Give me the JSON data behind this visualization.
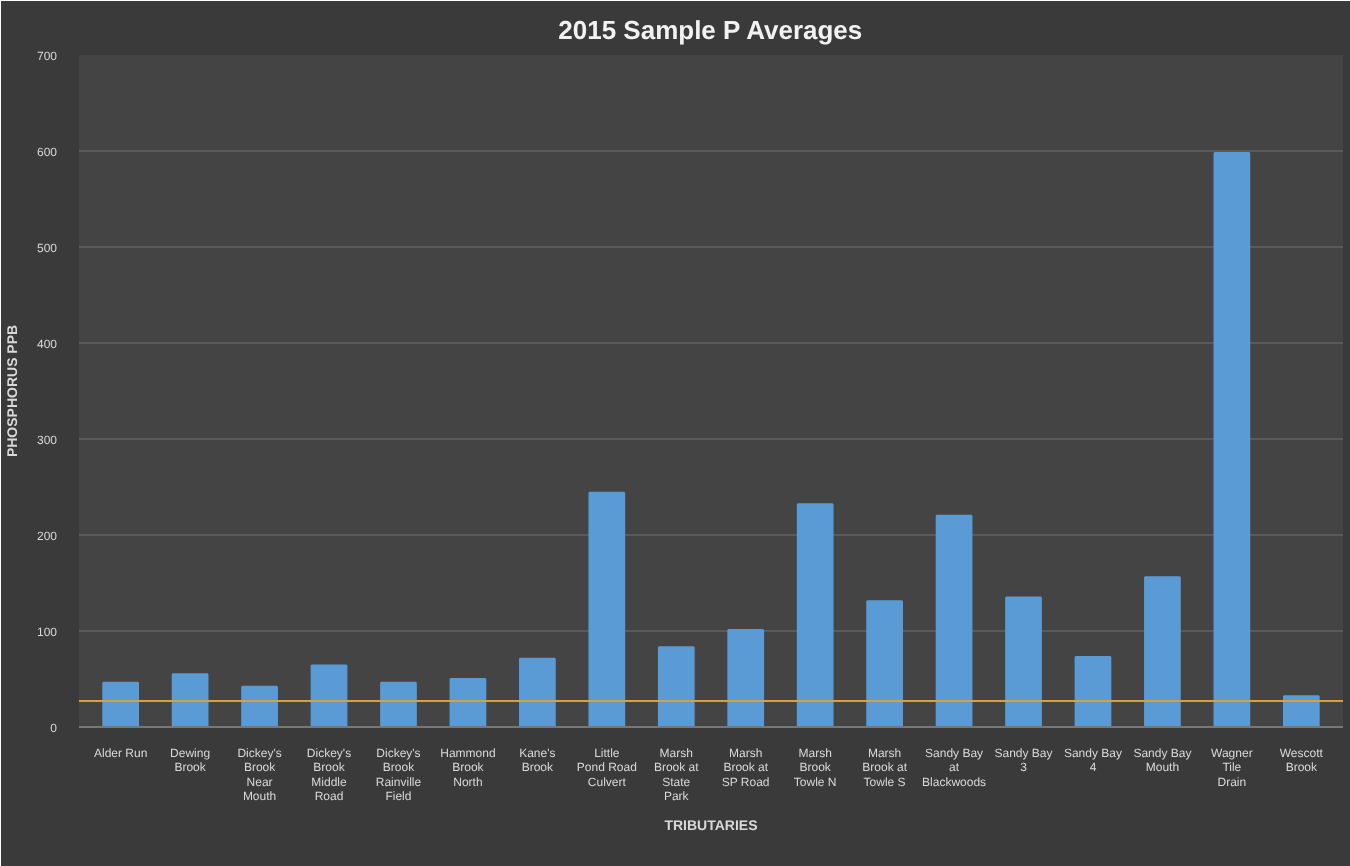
{
  "chart_data": {
    "type": "bar",
    "title": "2015 Sample P Averages",
    "xlabel": "TRIBUTARIES",
    "ylabel": "PHOSPHORUS PPB",
    "categories": [
      "Alder Run",
      "Dewing Brook",
      "Dickey's Brook Near Mouth",
      "Dickey's Brook Middle Road",
      "Dickey's Brook Rainville Field",
      "Hammond Brook North",
      "Kane's Brook",
      "Little Pond Road Culvert",
      "Marsh Brook at State Park",
      "Marsh Brook at SP Road",
      "Marsh Brook Towle N",
      "Marsh Brook at Towle S",
      "Sandy Bay at Blackwoods",
      "Sandy Bay 3",
      "Sandy Bay 4",
      "Sandy Bay Mouth",
      "Wagner Tile Drain",
      "Wescott Brook"
    ],
    "values": [
      46,
      55,
      42,
      64,
      46,
      50,
      71,
      244,
      83,
      101,
      232,
      131,
      220,
      135,
      73,
      156,
      598,
      32
    ],
    "color": "#5b9bd5",
    "ylim": [
      0,
      700
    ],
    "yticks": [
      0,
      100,
      200,
      300,
      400,
      500,
      600,
      700
    ],
    "grid": "y",
    "ref_lines": [
      {
        "axis": "y",
        "value": 27,
        "color": "#e0a030"
      }
    ]
  }
}
